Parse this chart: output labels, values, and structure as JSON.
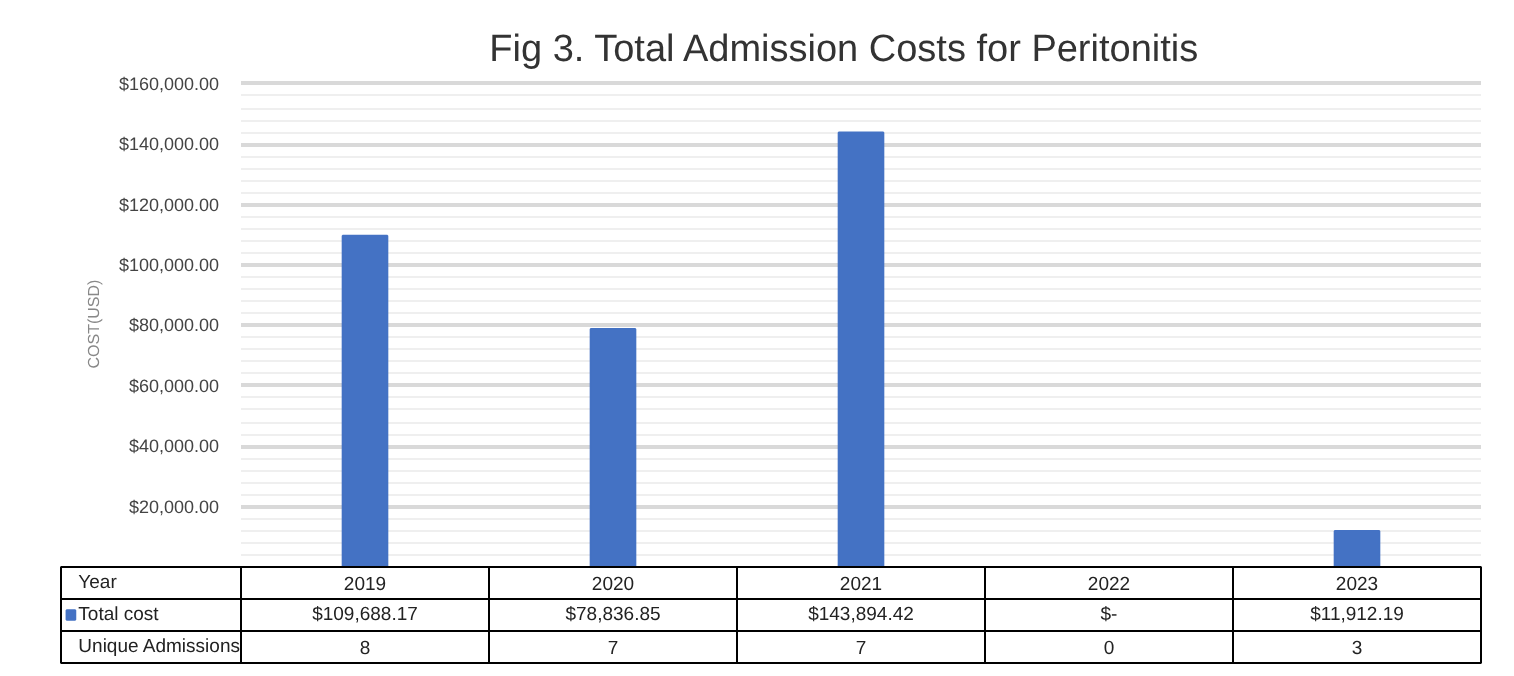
{
  "chart_data": {
    "type": "bar",
    "title": "Fig 3.    Total Admission Costs for Peritonitis",
    "ylabel": "COST(USD)",
    "xlabel": "Year",
    "categories": [
      "2019",
      "2020",
      "2021",
      "2022",
      "2023"
    ],
    "series": [
      {
        "name": "Total cost",
        "color": "#4472c4",
        "values": [
          109688.17,
          78836.85,
          143894.42,
          0,
          11912.19
        ],
        "value_labels": [
          "$109,688.17",
          "$78,836.85",
          "$143,894.42",
          "$-",
          "$11,912.19"
        ]
      }
    ],
    "ylim": [
      0,
      160000
    ],
    "yticks": [
      {
        "value": 20000,
        "label": "$20,000.00"
      },
      {
        "value": 40000,
        "label": "$40,000.00"
      },
      {
        "value": 60000,
        "label": "$60,000.00"
      },
      {
        "value": 80000,
        "label": "$80,000.00"
      },
      {
        "value": 100000,
        "label": "$100,000.00"
      },
      {
        "value": 120000,
        "label": "$120,000.00"
      },
      {
        "value": 140000,
        "label": "$140,000.00"
      },
      {
        "value": 160000,
        "label": "$160,000.00"
      }
    ],
    "grid": "y",
    "legend": "bottom",
    "annotations": [
      "Unique Admissions",
      "8",
      "7",
      "7",
      "0",
      "3"
    ]
  }
}
